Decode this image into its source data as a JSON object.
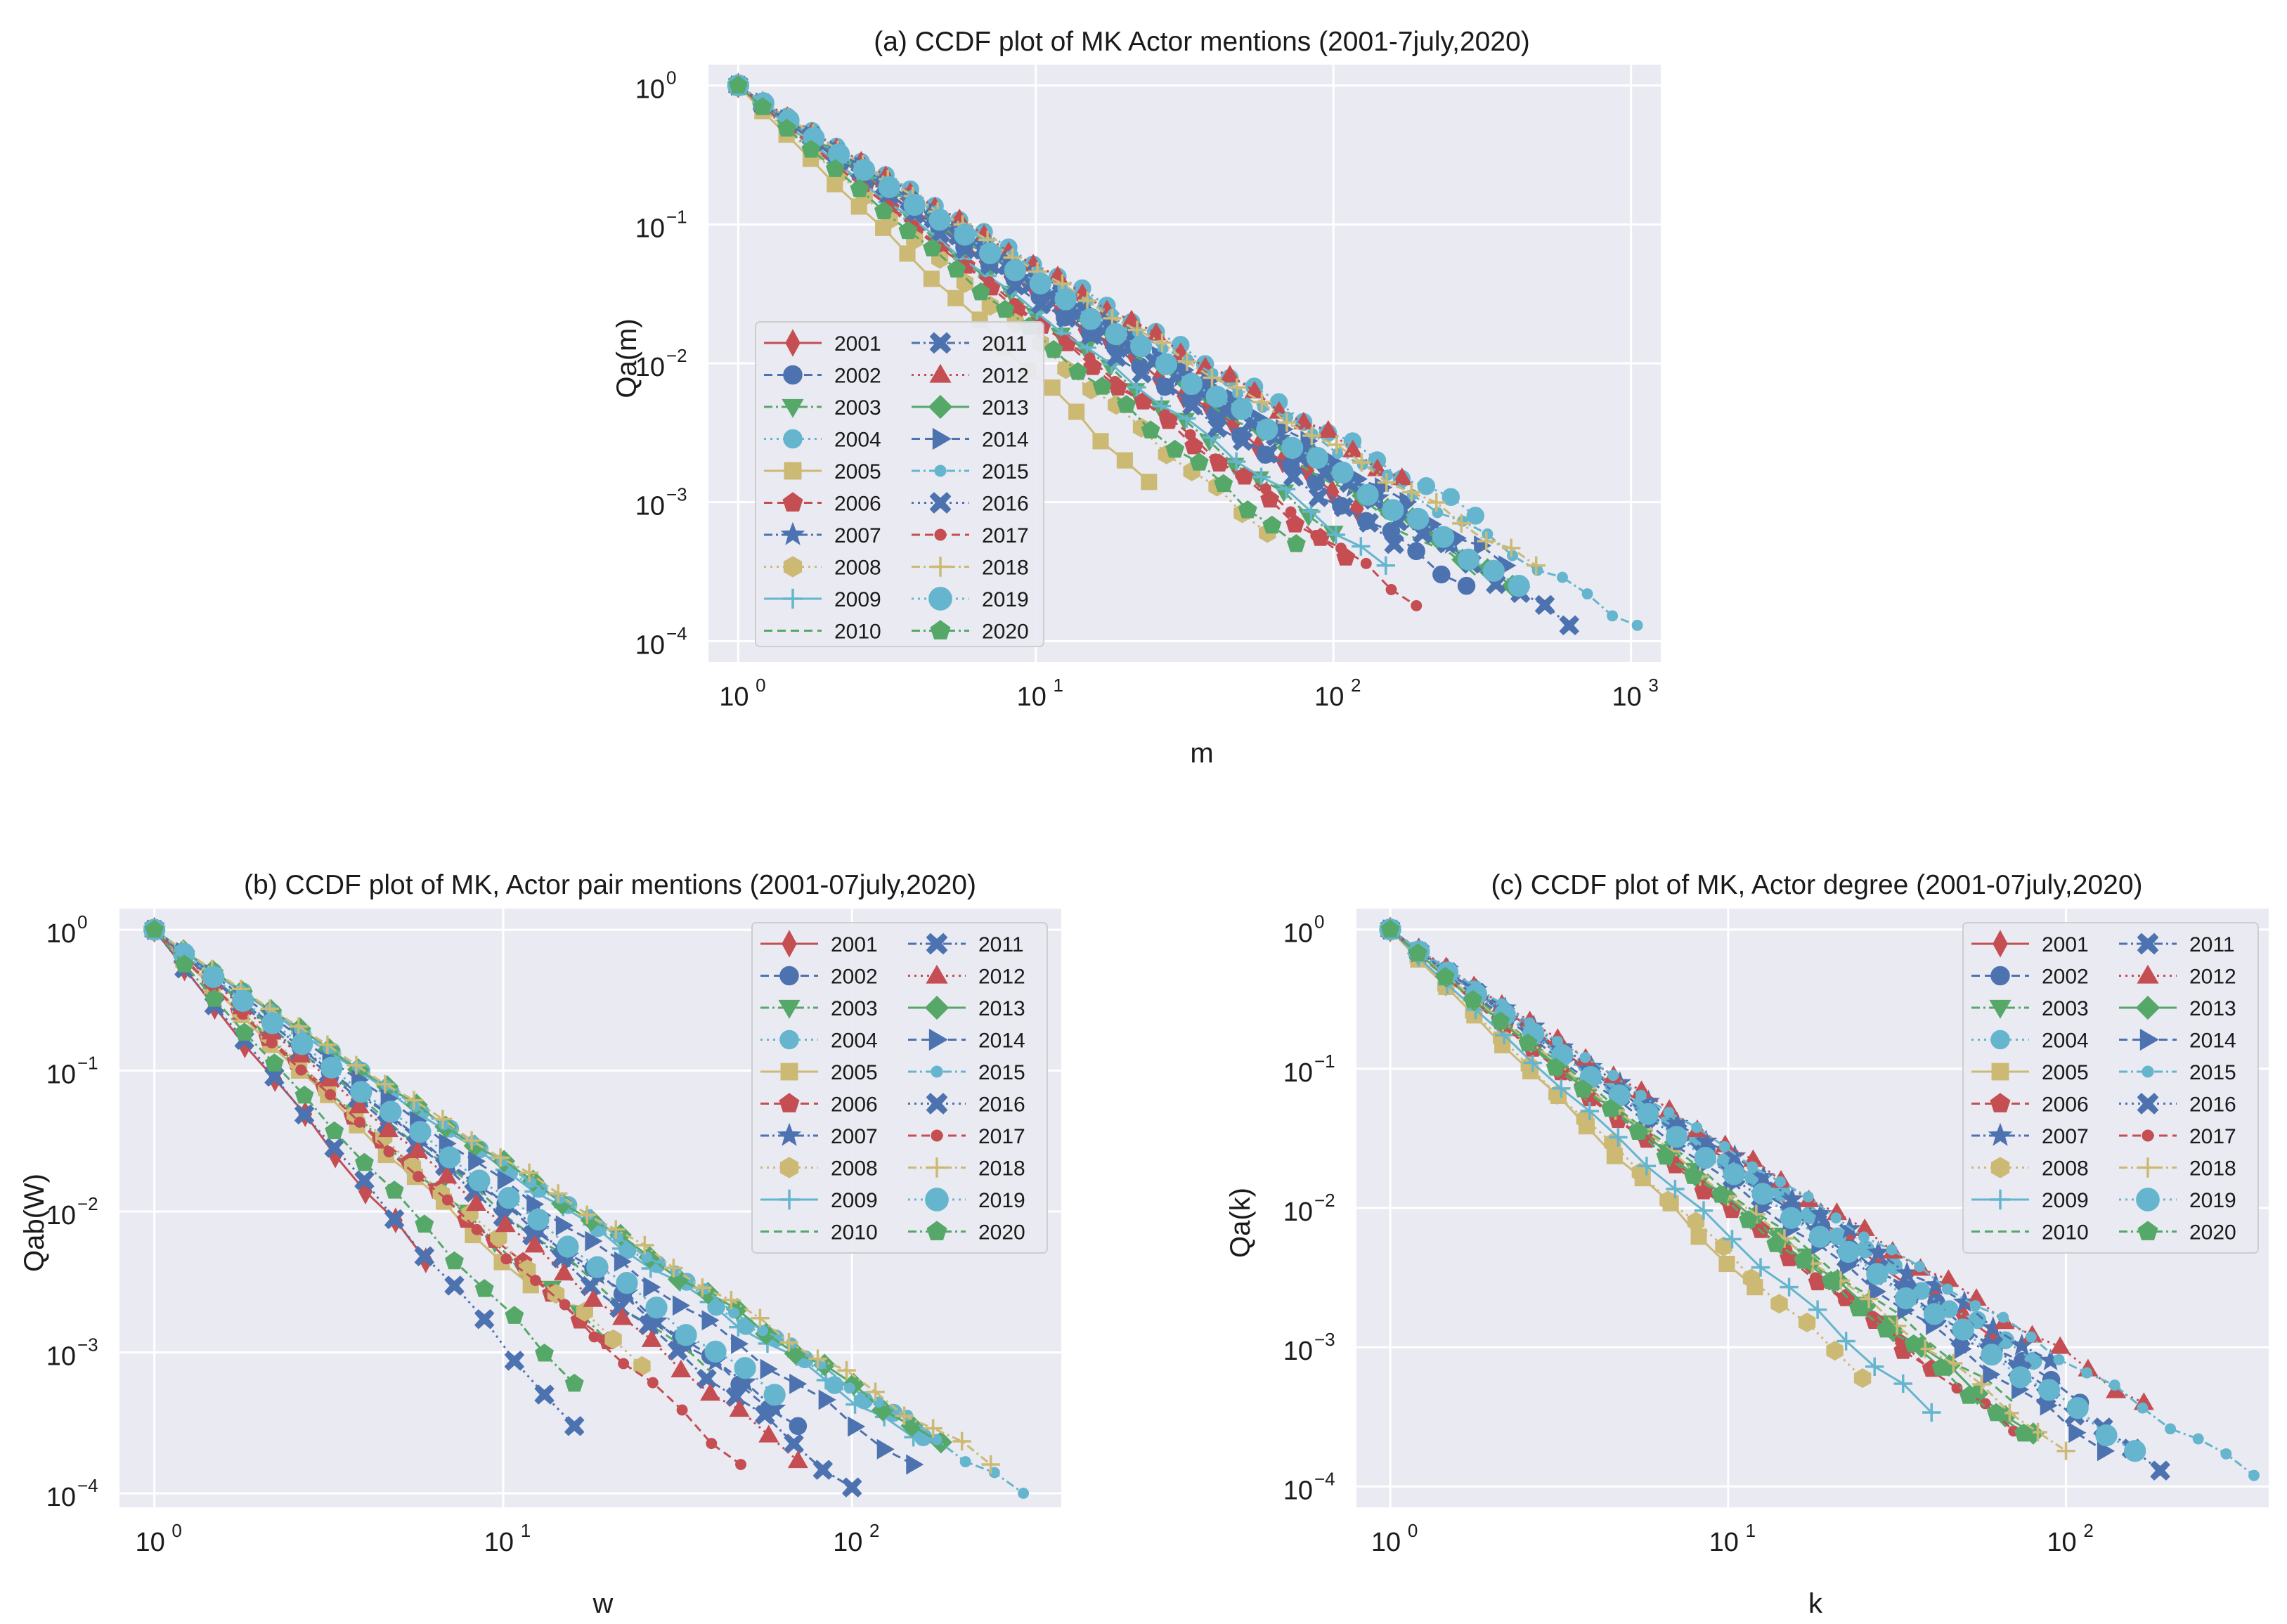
{
  "chart_data": [
    {
      "type": "line",
      "scale": "log-log",
      "title": "(a) CCDF plot of MK Actor mentions (2001-7july,2020)",
      "xlabel": "m",
      "ylabel": "Qa(m)",
      "xlim_exp": [
        -0.1,
        3.1
      ],
      "ylim_exp": [
        -4.15,
        0.15
      ],
      "xticks": [
        {
          "base": "10",
          "exp": "0",
          "v": 0
        },
        {
          "base": "10",
          "exp": "1",
          "v": 1
        },
        {
          "base": "10",
          "exp": "2",
          "v": 2
        },
        {
          "base": "10",
          "exp": "3",
          "v": 3
        }
      ],
      "yticks": [
        {
          "base": "10",
          "exp": "0",
          "v": 0
        },
        {
          "base": "10",
          "exp": "−1",
          "v": -1
        },
        {
          "base": "10",
          "exp": "−2",
          "v": -2
        },
        {
          "base": "10",
          "exp": "−3",
          "v": -3
        },
        {
          "base": "10",
          "exp": "−4",
          "v": -4
        }
      ],
      "grid": true,
      "legend_loc": "lower-left",
      "series": [
        {
          "name": "2001",
          "end": [
            120,
            0.0009
          ],
          "slope": 1.42
        },
        {
          "name": "2002",
          "end": [
            280,
            0.00025
          ],
          "slope": 1.45
        },
        {
          "name": "2003",
          "end": [
            100,
            0.0006
          ],
          "slope": 1.55
        },
        {
          "name": "2004",
          "end": [
            300,
            0.0008
          ],
          "slope": 1.25
        },
        {
          "name": "2005",
          "end": [
            24,
            0.0014
          ],
          "slope": 2.1
        },
        {
          "name": "2006",
          "end": [
            110,
            0.0004
          ],
          "slope": 1.6
        },
        {
          "name": "2007",
          "end": [
            250,
            0.0005
          ],
          "slope": 1.4
        },
        {
          "name": "2008",
          "end": [
            60,
            0.0006
          ],
          "slope": 1.8
        },
        {
          "name": "2009",
          "end": [
            150,
            0.00035
          ],
          "slope": 1.55
        },
        {
          "name": "2010",
          "end": [
            300,
            0.0003
          ],
          "slope": 1.45
        },
        {
          "name": "2011",
          "end": [
            160,
            0.0005
          ],
          "slope": 1.5
        },
        {
          "name": "2012",
          "end": [
            170,
            0.0015
          ],
          "slope": 1.3
        },
        {
          "name": "2013",
          "end": [
            400,
            0.00025
          ],
          "slope": 1.38
        },
        {
          "name": "2014",
          "end": [
            380,
            0.00035
          ],
          "slope": 1.35
        },
        {
          "name": "2015",
          "end": [
            1050,
            0.00013
          ],
          "slope": 1.28
        },
        {
          "name": "2016",
          "end": [
            620,
            0.00013
          ],
          "slope": 1.4
        },
        {
          "name": "2017",
          "end": [
            190,
            0.00018
          ],
          "slope": 1.65
        },
        {
          "name": "2018",
          "end": [
            480,
            0.00035
          ],
          "slope": 1.3
        },
        {
          "name": "2019",
          "end": [
            420,
            0.00025
          ],
          "slope": 1.35
        },
        {
          "name": "2020",
          "end": [
            75,
            0.0005
          ],
          "slope": 1.75
        }
      ]
    },
    {
      "type": "line",
      "scale": "log-log",
      "title": "(b) CCDF plot of MK, Actor pair mentions (2001-07july,2020)",
      "xlabel": "w",
      "ylabel": "Qab(W)",
      "xlim_exp": [
        -0.1,
        2.6
      ],
      "ylim_exp": [
        -4.1,
        0.15
      ],
      "xticks": [
        {
          "base": "10",
          "exp": "0",
          "v": 0
        },
        {
          "base": "10",
          "exp": "1",
          "v": 1
        },
        {
          "base": "10",
          "exp": "2",
          "v": 2
        }
      ],
      "yticks": [
        {
          "base": "10",
          "exp": "0",
          "v": 0
        },
        {
          "base": "10",
          "exp": "−1",
          "v": -1
        },
        {
          "base": "10",
          "exp": "−2",
          "v": -2
        },
        {
          "base": "10",
          "exp": "−3",
          "v": -3
        },
        {
          "base": "10",
          "exp": "−4",
          "v": -4
        }
      ],
      "grid": true,
      "legend_loc": "upper-right",
      "series": [
        {
          "name": "2001",
          "end": [
            6,
            0.0045
          ],
          "slope": 2.4
        },
        {
          "name": "2002",
          "end": [
            70,
            0.0003
          ],
          "slope": 1.6
        },
        {
          "name": "2003",
          "end": [
            20,
            0.0012
          ],
          "slope": 1.9
        },
        {
          "name": "2004",
          "end": [
            160,
            0.00025
          ],
          "slope": 1.45
        },
        {
          "name": "2005",
          "end": [
            12,
            0.003
          ],
          "slope": 2.0
        },
        {
          "name": "2006",
          "end": [
            20,
            0.0012
          ],
          "slope": 1.9
        },
        {
          "name": "2007",
          "end": [
            60,
            0.0004
          ],
          "slope": 1.65
        },
        {
          "name": "2008",
          "end": [
            25,
            0.0008
          ],
          "slope": 1.8
        },
        {
          "name": "2009",
          "end": [
            150,
            0.00025
          ],
          "slope": 1.5
        },
        {
          "name": "2010",
          "end": [
            40,
            0.0007
          ],
          "slope": 1.7
        },
        {
          "name": "2011",
          "end": [
            100,
            0.00011
          ],
          "slope": 1.85
        },
        {
          "name": "2012",
          "end": [
            70,
            0.00017
          ],
          "slope": 1.85
        },
        {
          "name": "2013",
          "end": [
            180,
            0.00023
          ],
          "slope": 1.55
        },
        {
          "name": "2014",
          "end": [
            150,
            0.00016
          ],
          "slope": 1.65
        },
        {
          "name": "2015",
          "end": [
            310,
            0.0001
          ],
          "slope": 1.4
        },
        {
          "name": "2016",
          "end": [
            16,
            0.0003
          ],
          "slope": 2.7
        },
        {
          "name": "2017",
          "end": [
            48,
            0.00016
          ],
          "slope": 2.0
        },
        {
          "name": "2018",
          "end": [
            250,
            0.00016
          ],
          "slope": 1.55
        },
        {
          "name": "2019",
          "end": [
            60,
            0.0005
          ],
          "slope": 1.7
        },
        {
          "name": "2020",
          "end": [
            16,
            0.0006
          ],
          "slope": 2.5
        }
      ]
    },
    {
      "type": "line",
      "scale": "log-log",
      "title": "(c) CCDF plot of MK, Actor degree (2001-07july,2020)",
      "xlabel": "k",
      "ylabel": "Qa(k)",
      "xlim_exp": [
        -0.1,
        2.6
      ],
      "ylim_exp": [
        -4.15,
        0.15
      ],
      "xticks": [
        {
          "base": "10",
          "exp": "0",
          "v": 0
        },
        {
          "base": "10",
          "exp": "1",
          "v": 1
        },
        {
          "base": "10",
          "exp": "2",
          "v": 2
        }
      ],
      "yticks": [
        {
          "base": "10",
          "exp": "0",
          "v": 0
        },
        {
          "base": "10",
          "exp": "−1",
          "v": -1
        },
        {
          "base": "10",
          "exp": "−2",
          "v": -2
        },
        {
          "base": "10",
          "exp": "−3",
          "v": -3
        },
        {
          "base": "10",
          "exp": "−4",
          "v": -4
        }
      ],
      "grid": true,
      "legend_loc": "upper-right",
      "series": [
        {
          "name": "2001",
          "end": [
            60,
            0.0012
          ],
          "slope": 1.75
        },
        {
          "name": "2002",
          "end": [
            110,
            0.0004
          ],
          "slope": 1.7
        },
        {
          "name": "2003",
          "end": [
            30,
            0.0015
          ],
          "slope": 2.0
        },
        {
          "name": "2004",
          "end": [
            80,
            0.0008
          ],
          "slope": 1.7
        },
        {
          "name": "2005",
          "end": [
            12,
            0.0027
          ],
          "slope": 2.6
        },
        {
          "name": "2006",
          "end": [
            40,
            0.0007
          ],
          "slope": 2.0
        },
        {
          "name": "2007",
          "end": [
            90,
            0.0008
          ],
          "slope": 1.6
        },
        {
          "name": "2008",
          "end": [
            25,
            0.0006
          ],
          "slope": 2.4
        },
        {
          "name": "2009",
          "end": [
            40,
            0.00034
          ],
          "slope": 2.25
        },
        {
          "name": "2010",
          "end": [
            70,
            0.0004
          ],
          "slope": 1.9
        },
        {
          "name": "2011",
          "end": [
            90,
            0.0005
          ],
          "slope": 1.7
        },
        {
          "name": "2012",
          "end": [
            170,
            0.0004
          ],
          "slope": 1.5
        },
        {
          "name": "2013",
          "end": [
            80,
            0.00024
          ],
          "slope": 1.9
        },
        {
          "name": "2014",
          "end": [
            130,
            0.00018
          ],
          "slope": 1.8
        },
        {
          "name": "2015",
          "end": [
            360,
            0.00012
          ],
          "slope": 1.55
        },
        {
          "name": "2016",
          "end": [
            190,
            0.00013
          ],
          "slope": 1.7
        },
        {
          "name": "2017",
          "end": [
            70,
            0.00025
          ],
          "slope": 2.0
        },
        {
          "name": "2018",
          "end": [
            100,
            0.00018
          ],
          "slope": 1.9
        },
        {
          "name": "2019",
          "end": [
            160,
            0.00018
          ],
          "slope": 1.7
        },
        {
          "name": "2020",
          "end": [
            75,
            0.00024
          ],
          "slope": 1.95
        }
      ]
    }
  ],
  "legend": {
    "entries": [
      {
        "name": "2001",
        "color": "#c44e52",
        "marker": "d",
        "dash": ""
      },
      {
        "name": "2002",
        "color": "#4c72b0",
        "marker": "o",
        "dash": "12,7"
      },
      {
        "name": "2003",
        "color": "#55a868",
        "marker": "v",
        "dash": "12,5,3,5"
      },
      {
        "name": "2004",
        "color": "#64b5cd",
        "marker": "o",
        "dash": "3,6"
      },
      {
        "name": "2005",
        "color": "#ccb974",
        "marker": "s",
        "dash": ""
      },
      {
        "name": "2006",
        "color": "#c44e52",
        "marker": "p",
        "dash": "12,7"
      },
      {
        "name": "2007",
        "color": "#4c72b0",
        "marker": "*",
        "dash": "12,5,3,5"
      },
      {
        "name": "2008",
        "color": "#ccb974",
        "marker": "h",
        "dash": "3,6"
      },
      {
        "name": "2009",
        "color": "#64b5cd",
        "marker": "+",
        "dash": ""
      },
      {
        "name": "2010",
        "color": "#55a868",
        "marker": "none",
        "dash": "12,7"
      },
      {
        "name": "2011",
        "color": "#4c72b0",
        "marker": "X",
        "dash": "12,5,3,5"
      },
      {
        "name": "2012",
        "color": "#c44e52",
        "marker": "^",
        "dash": "3,6"
      },
      {
        "name": "2013",
        "color": "#55a868",
        "marker": "D",
        "dash": ""
      },
      {
        "name": "2014",
        "color": "#4c72b0",
        "marker": ">",
        "dash": "12,7"
      },
      {
        "name": "2015",
        "color": "#64b5cd",
        "marker": ".",
        "dash": "12,5,3,5"
      },
      {
        "name": "2016",
        "color": "#4c72b0",
        "marker": "X",
        "dash": "3,6"
      },
      {
        "name": "2017",
        "color": "#c44e52",
        "marker": ".",
        "dash": "12,7"
      },
      {
        "name": "2018",
        "color": "#ccb974",
        "marker": "+",
        "dash": "12,5,3,5"
      },
      {
        "name": "2019",
        "color": "#64b5cd",
        "marker": "O",
        "dash": "3,6"
      },
      {
        "name": "2020",
        "color": "#55a868",
        "marker": "p",
        "dash": "12,5,3,5"
      }
    ]
  },
  "colors": {
    "plot_bg": "#eaeaf2",
    "grid": "#ffffff"
  }
}
